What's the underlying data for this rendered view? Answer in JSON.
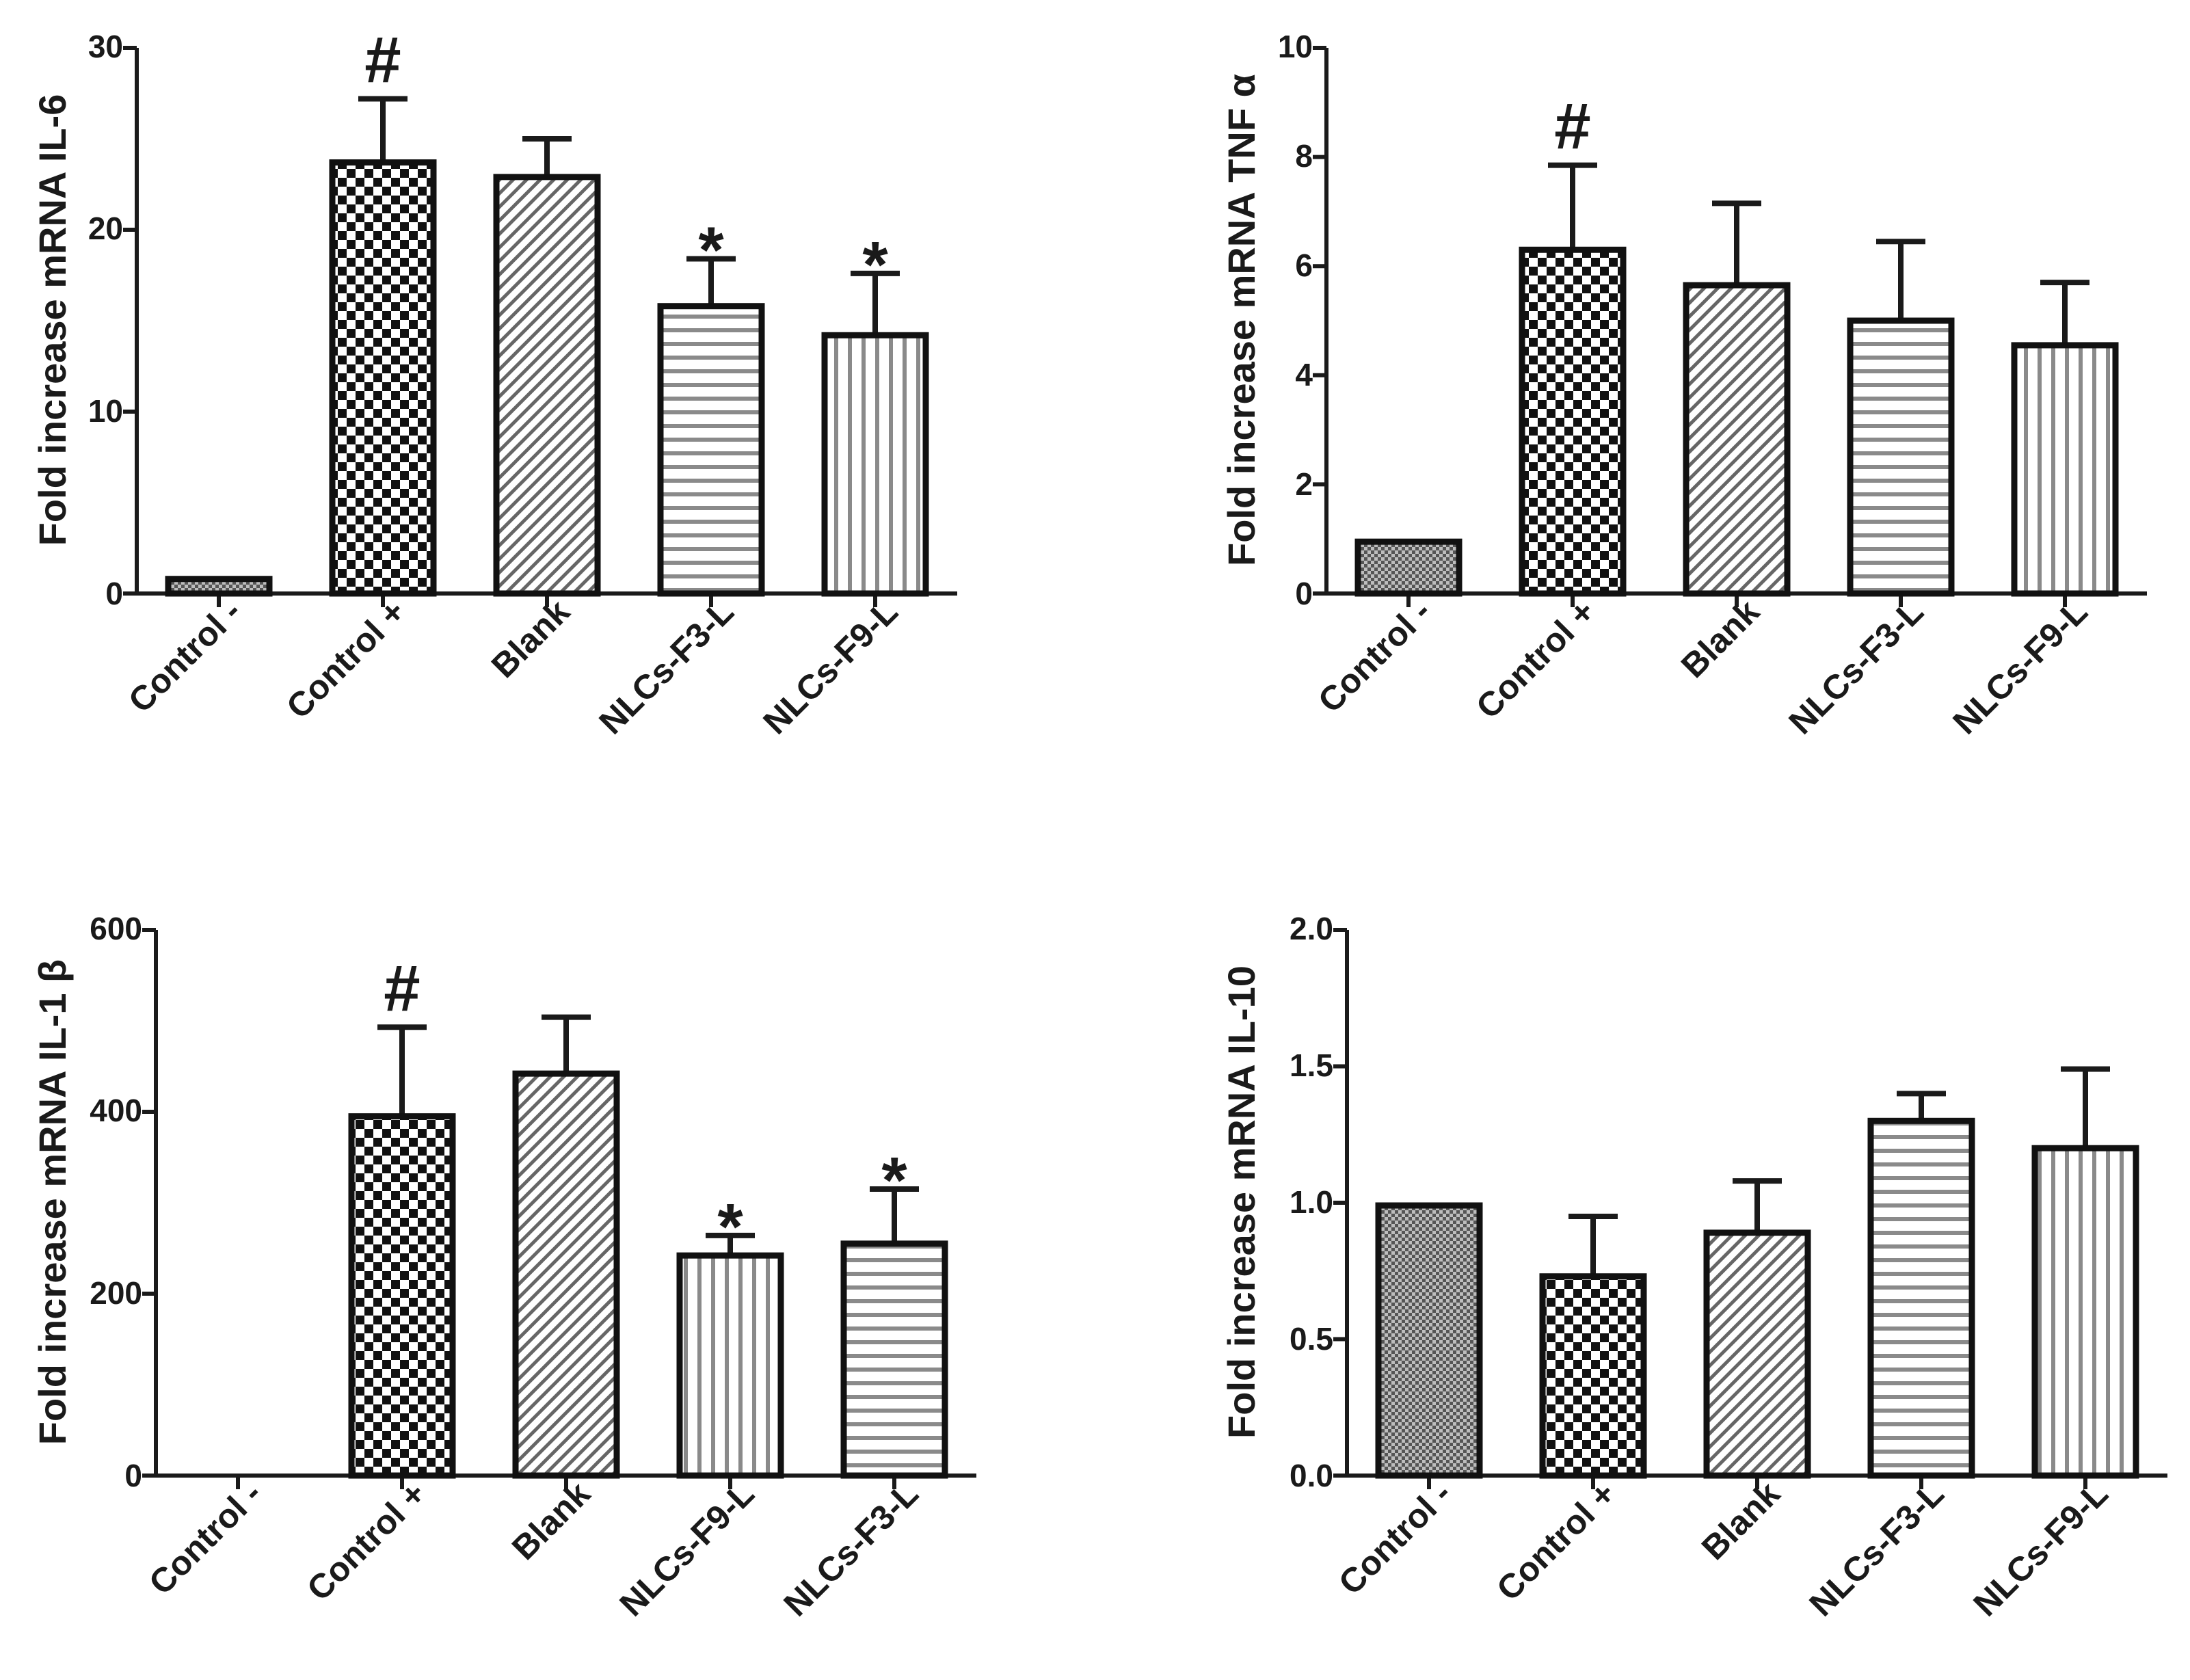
{
  "chart_data": [
    {
      "type": "bar",
      "id": "il6",
      "ylabel": "Fold increase mRNA IL-6",
      "ylim": [
        0,
        30
      ],
      "yticks": [
        0,
        10,
        20,
        30
      ],
      "categories": [
        "Control -",
        "Control +",
        "Blank",
        "NLCs-F3-L",
        "NLCs-F9-L"
      ],
      "values": [
        0.8,
        23.7,
        22.9,
        15.8,
        14.2
      ],
      "errors": [
        0,
        3.5,
        2.1,
        2.6,
        3.4
      ],
      "patterns": [
        "dense",
        "checker",
        "diagonal",
        "horizontal",
        "vertical"
      ],
      "annotations": [
        "",
        "#",
        "",
        "*",
        "*"
      ]
    },
    {
      "type": "bar",
      "id": "tnf",
      "ylabel": "Fold increase mRNA TNF α",
      "ylim": [
        0,
        10
      ],
      "yticks": [
        0,
        2,
        4,
        6,
        8,
        10
      ],
      "categories": [
        "Control -",
        "Control +",
        "Blank",
        "NLCs-F3-L",
        "NLCs-F9-L"
      ],
      "values": [
        0.95,
        6.3,
        5.65,
        5.0,
        4.55
      ],
      "errors": [
        0,
        1.55,
        1.5,
        1.45,
        1.15
      ],
      "patterns": [
        "dense",
        "checker",
        "diagonal",
        "horizontal",
        "vertical"
      ],
      "annotations": [
        "",
        "#",
        "",
        "",
        ""
      ]
    },
    {
      "type": "bar",
      "id": "il1b",
      "ylabel": "Fold increase mRNA IL-1 β",
      "ylim": [
        0,
        600
      ],
      "yticks": [
        0,
        200,
        400,
        600
      ],
      "categories": [
        "Control -",
        "Control +",
        "Blank",
        "NLCs-F9-L",
        "NLCs-F3-L"
      ],
      "values": [
        0,
        395,
        442,
        242,
        255
      ],
      "errors": [
        0,
        98,
        62,
        22,
        60
      ],
      "patterns": [
        "dense",
        "checker",
        "diagonal",
        "vertical",
        "horizontal"
      ],
      "annotations": [
        "",
        "#",
        "",
        "*",
        "*"
      ]
    },
    {
      "type": "bar",
      "id": "il10",
      "ylabel": "Fold increase mRNA IL-10",
      "ylim": [
        0,
        2
      ],
      "yticks": [
        "0.0",
        "0.5",
        "1.0",
        "1.5",
        "2.0"
      ],
      "categories": [
        "Control -",
        "Control +",
        "Blank",
        "NLCs-F3-L",
        "NLCs-F9-L"
      ],
      "values": [
        0.99,
        0.73,
        0.89,
        1.3,
        1.2
      ],
      "errors": [
        0,
        0.22,
        0.19,
        0.1,
        0.29
      ],
      "patterns": [
        "dense",
        "checker",
        "diagonal",
        "horizontal",
        "vertical"
      ],
      "annotations": [
        "",
        "",
        "",
        "",
        ""
      ]
    }
  ]
}
